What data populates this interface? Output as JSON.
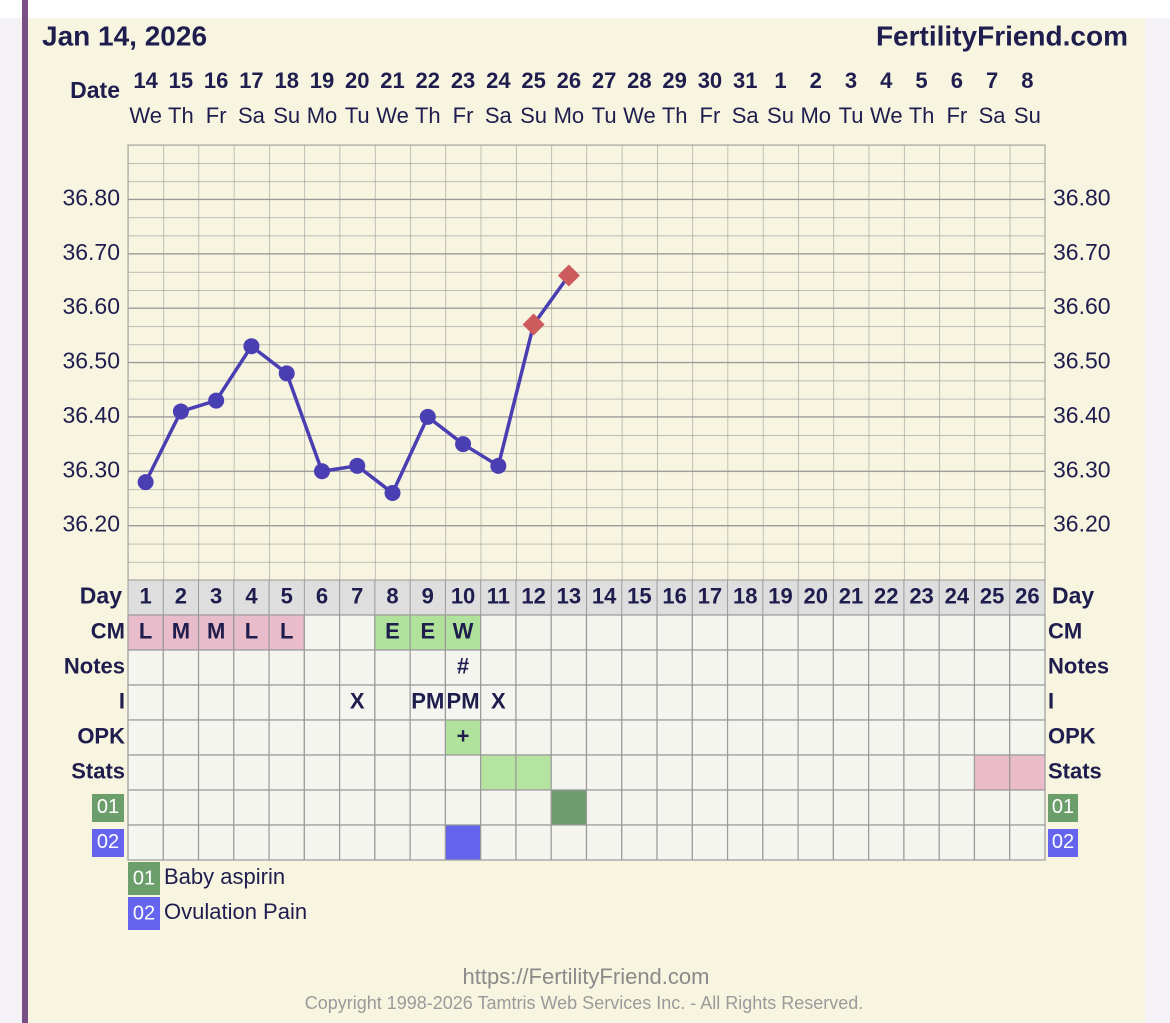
{
  "chart_data": {
    "type": "line",
    "title": "Jan 14, 2026",
    "site": "FertilityFriend.com",
    "date_label": "Date",
    "categories": [
      "14",
      "15",
      "16",
      "17",
      "18",
      "19",
      "20",
      "21",
      "22",
      "23",
      "24",
      "25",
      "26",
      "27",
      "28",
      "29",
      "30",
      "31",
      "1",
      "2",
      "3",
      "4",
      "5",
      "6",
      "7",
      "8"
    ],
    "weekdays": [
      "We",
      "Th",
      "Fr",
      "Sa",
      "Su",
      "Mo",
      "Tu",
      "We",
      "Th",
      "Fr",
      "Sa",
      "Su",
      "Mo",
      "Tu",
      "We",
      "Th",
      "Fr",
      "Sa",
      "Su",
      "Mo",
      "Tu",
      "We",
      "Th",
      "Fr",
      "Sa",
      "Su"
    ],
    "values": [
      36.28,
      36.41,
      36.43,
      36.53,
      36.48,
      36.3,
      36.31,
      36.26,
      36.4,
      36.35,
      36.31,
      36.57,
      36.66,
      null,
      null,
      null,
      null,
      null,
      null,
      null,
      null,
      null,
      null,
      null,
      null,
      null
    ],
    "markers": [
      "circle",
      "circle",
      "circle",
      "circle",
      "circle",
      "circle",
      "circle",
      "circle",
      "circle",
      "circle",
      "circle",
      "diamond",
      "diamond",
      null,
      null,
      null,
      null,
      null,
      null,
      null,
      null,
      null,
      null,
      null,
      null,
      null
    ],
    "color": "#4a3fb2",
    "marker_colors": {
      "circle": "#4a3fb2",
      "diamond": "#cd5a5c"
    },
    "ylim": [
      36.1,
      36.9
    ],
    "yticks": [
      {
        "value": 36.2,
        "label": "36.20"
      },
      {
        "value": 36.3,
        "label": "36.30"
      },
      {
        "value": 36.4,
        "label": "36.40"
      },
      {
        "value": 36.5,
        "label": "36.50"
      },
      {
        "value": 36.6,
        "label": "36.60"
      },
      {
        "value": 36.7,
        "label": "36.70"
      },
      {
        "value": 36.8,
        "label": "36.80"
      }
    ],
    "grid": true,
    "day_label": "Day",
    "days": [
      1,
      2,
      3,
      4,
      5,
      6,
      7,
      8,
      9,
      10,
      11,
      12,
      13,
      14,
      15,
      16,
      17,
      18,
      19,
      20,
      21,
      22,
      23,
      24,
      25,
      26
    ],
    "rows": [
      {
        "label": "CM",
        "cells": [
          "L",
          "M",
          "M",
          "L",
          "L",
          null,
          null,
          "E",
          "E",
          "W",
          null,
          null,
          null,
          null,
          null,
          null,
          null,
          null,
          null,
          null,
          null,
          null,
          null,
          null,
          null,
          null
        ],
        "colors": [
          "#e8bccb",
          "#e8bccb",
          "#e8bccb",
          "#e8bccb",
          "#e8bccb",
          null,
          null,
          "#b1e29b",
          "#b1e29b",
          "#b1e29b",
          null,
          null,
          null,
          null,
          null,
          null,
          null,
          null,
          null,
          null,
          null,
          null,
          null,
          null,
          null,
          null
        ]
      },
      {
        "label": "Notes",
        "cells": [
          null,
          null,
          null,
          null,
          null,
          null,
          null,
          null,
          null,
          "#",
          null,
          null,
          null,
          null,
          null,
          null,
          null,
          null,
          null,
          null,
          null,
          null,
          null,
          null,
          null,
          null
        ],
        "colors": [
          null,
          null,
          null,
          null,
          null,
          null,
          null,
          null,
          null,
          null,
          null,
          null,
          null,
          null,
          null,
          null,
          null,
          null,
          null,
          null,
          null,
          null,
          null,
          null,
          null,
          null
        ]
      },
      {
        "label": "I",
        "cells": [
          null,
          null,
          null,
          null,
          null,
          null,
          "X",
          null,
          "PM",
          "PM",
          "X",
          null,
          null,
          null,
          null,
          null,
          null,
          null,
          null,
          null,
          null,
          null,
          null,
          null,
          null,
          null
        ],
        "colors": [
          null,
          null,
          null,
          null,
          null,
          null,
          null,
          null,
          null,
          null,
          null,
          null,
          null,
          null,
          null,
          null,
          null,
          null,
          null,
          null,
          null,
          null,
          null,
          null,
          null,
          null
        ]
      },
      {
        "label": "OPK",
        "cells": [
          null,
          null,
          null,
          null,
          null,
          null,
          null,
          null,
          null,
          "+",
          null,
          null,
          null,
          null,
          null,
          null,
          null,
          null,
          null,
          null,
          null,
          null,
          null,
          null,
          null,
          null
        ],
        "colors": [
          null,
          null,
          null,
          null,
          null,
          null,
          null,
          null,
          null,
          "#b1e29b",
          null,
          null,
          null,
          null,
          null,
          null,
          null,
          null,
          null,
          null,
          null,
          null,
          null,
          null,
          null,
          null
        ]
      },
      {
        "label": "Stats",
        "cells": [
          null,
          null,
          null,
          null,
          null,
          null,
          null,
          null,
          null,
          null,
          null,
          null,
          null,
          null,
          null,
          null,
          null,
          null,
          null,
          null,
          null,
          null,
          null,
          null,
          null,
          null
        ],
        "colors": [
          null,
          null,
          null,
          null,
          null,
          null,
          null,
          null,
          null,
          null,
          "#b5e3a0",
          "#b5e3a0",
          null,
          null,
          null,
          null,
          null,
          null,
          null,
          null,
          null,
          null,
          null,
          null,
          "#e9bcc8",
          "#e9bcc8"
        ]
      },
      {
        "label": "01",
        "label_color": "#6c9e6c",
        "cells": [
          null,
          null,
          null,
          null,
          null,
          null,
          null,
          null,
          null,
          null,
          null,
          null,
          null,
          null,
          null,
          null,
          null,
          null,
          null,
          null,
          null,
          null,
          null,
          null,
          null,
          null
        ],
        "colors": [
          null,
          null,
          null,
          null,
          null,
          null,
          null,
          null,
          null,
          null,
          null,
          null,
          "#6f9c6f",
          null,
          null,
          null,
          null,
          null,
          null,
          null,
          null,
          null,
          null,
          null,
          null,
          null
        ]
      },
      {
        "label": "02",
        "label_color": "#6464ee",
        "cells": [
          null,
          null,
          null,
          null,
          null,
          null,
          null,
          null,
          null,
          null,
          null,
          null,
          null,
          null,
          null,
          null,
          null,
          null,
          null,
          null,
          null,
          null,
          null,
          null,
          null,
          null
        ],
        "colors": [
          null,
          null,
          null,
          null,
          null,
          null,
          null,
          null,
          null,
          "#6464ee",
          null,
          null,
          null,
          null,
          null,
          null,
          null,
          null,
          null,
          null,
          null,
          null,
          null,
          null,
          null,
          null
        ]
      }
    ],
    "legend": [
      {
        "code": "01",
        "text": "Baby aspirin",
        "color": "#6c9e6c"
      },
      {
        "code": "02",
        "text": "Ovulation Pain",
        "color": "#6464ee"
      }
    ],
    "footer": {
      "url": "https://FertilityFriend.com",
      "copyright": "Copyright 1998-2026 Tamtris Web Services Inc. - All Rights Reserved."
    }
  }
}
